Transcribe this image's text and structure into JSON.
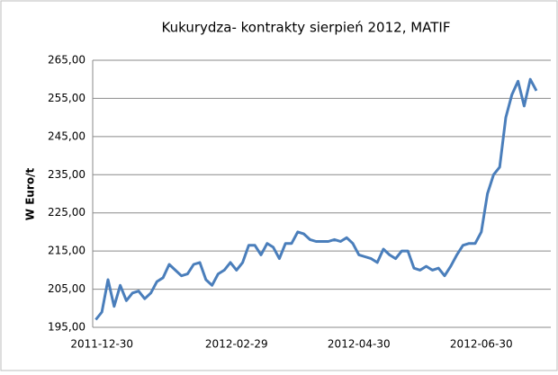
{
  "chart_data": {
    "type": "line",
    "title": "Kukurydza- kontrakty sierpień 2012, MATIF",
    "y_label": "W Euro/t",
    "categories": [
      null,
      "2011-12-30",
      null,
      null,
      null,
      null,
      null,
      null,
      null,
      null,
      null,
      null,
      null,
      null,
      null,
      null,
      null,
      null,
      null,
      null,
      null,
      null,
      null,
      "2012-02-29",
      null,
      null,
      null,
      null,
      null,
      null,
      null,
      null,
      null,
      null,
      null,
      null,
      null,
      null,
      null,
      null,
      null,
      null,
      null,
      "2012-04-30",
      null,
      null,
      null,
      null,
      null,
      null,
      null,
      null,
      null,
      null,
      null,
      null,
      null,
      null,
      null,
      null,
      null,
      null,
      null,
      "2012-06-30",
      null,
      null,
      null,
      null,
      null,
      null,
      null,
      null,
      null
    ],
    "values": [
      197,
      199,
      207.5,
      200.5,
      206,
      202,
      204,
      204.5,
      202.5,
      204,
      207,
      208,
      211.5,
      210,
      208.5,
      209,
      211.5,
      212,
      207.5,
      206,
      209,
      210,
      212,
      210,
      212,
      216.5,
      216.5,
      214,
      217,
      216,
      213,
      217,
      217,
      220,
      219.5,
      218,
      217.5,
      217.5,
      217.5,
      218,
      217.5,
      218.5,
      217,
      214,
      213.5,
      213,
      212,
      215.5,
      214,
      213,
      215,
      215,
      210.5,
      210,
      211,
      210,
      210.5,
      208.5,
      211,
      214,
      216.5,
      217,
      217,
      220,
      230,
      235,
      237,
      250,
      256,
      259.5,
      253,
      260,
      257
    ],
    "color": "#4a7ebb",
    "ylim": [
      195,
      265
    ],
    "yticks": [
      {
        "value": 195,
        "label": "195,00"
      },
      {
        "value": 205,
        "label": "205,00"
      },
      {
        "value": 215,
        "label": "215,00"
      },
      {
        "value": 225,
        "label": "225,00"
      },
      {
        "value": 235,
        "label": "235,00"
      },
      {
        "value": 245,
        "label": "245,00"
      },
      {
        "value": 255,
        "label": "255,00"
      },
      {
        "value": 265,
        "label": "265,00"
      }
    ],
    "grid": true
  }
}
